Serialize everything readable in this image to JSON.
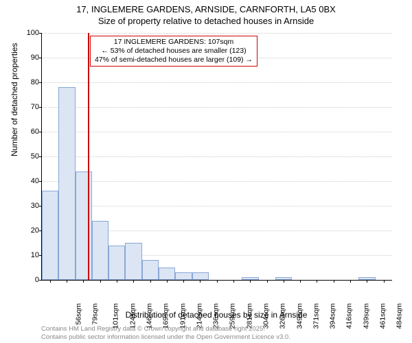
{
  "title": {
    "line1": "17, INGLEMERE GARDENS, ARNSIDE, CARNFORTH, LA5 0BX",
    "line2": "Size of property relative to detached houses in Arnside"
  },
  "chart": {
    "type": "histogram",
    "ylabel": "Number of detached properties",
    "xlabel": "Distribution of detached houses by size in Arnside",
    "ylim": [
      0,
      100
    ],
    "ytick_step": 10,
    "background_color": "#ffffff",
    "grid_color": "#cccccc",
    "bar_fill": "#dbe5f4",
    "bar_border": "#89a7d6",
    "marker_color": "#cc0000",
    "marker_sqm": 107,
    "xtick_start": 56,
    "xtick_step": 22.5,
    "xtick_count": 21,
    "xtick_unit": "sqm",
    "bar_bin_start": 45,
    "bar_bin_width": 22.5,
    "bar_values": [
      36,
      78,
      44,
      24,
      14,
      15,
      8,
      5,
      3,
      3,
      0,
      0,
      1,
      0,
      1,
      0,
      0,
      0,
      0,
      1,
      0
    ],
    "title_fontsize": 13,
    "label_fontsize": 12,
    "tick_fontsize": 11
  },
  "info_box": {
    "line1": "17 INGLEMERE GARDENS: 107sqm",
    "line2": "← 53% of detached houses are smaller (123)",
    "line3": "47% of semi-detached houses are larger (109) →"
  },
  "attribution": {
    "line1": "Contains HM Land Registry data © Crown copyright and database right 2025.",
    "line2": "Contains public sector information licensed under the Open Government Licence v3.0."
  }
}
